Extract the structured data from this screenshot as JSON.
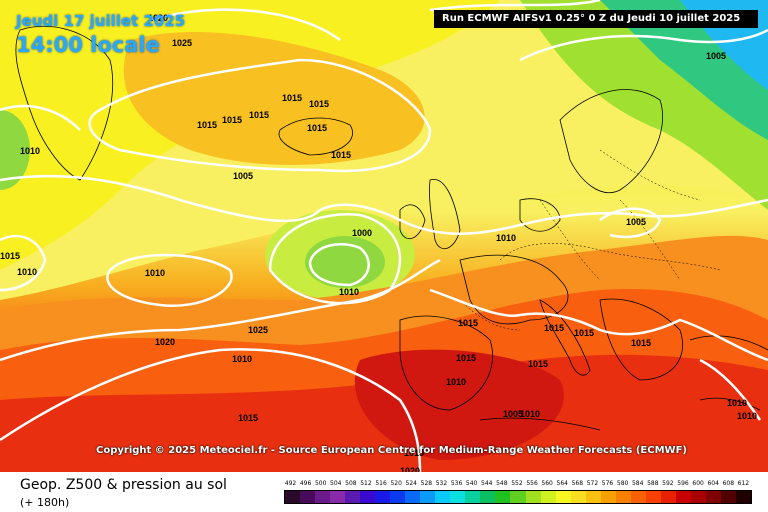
{
  "header": {
    "date": "Jeudi 17 juillet 2025",
    "time": "14:00 locale",
    "run": "Run ECMWF AIFSv1 0.25° 0 Z du Jeudi 10 juillet 2025"
  },
  "copyright": "Copyright © 2025 Meteociel.fr - Source European Centre for Medium-Range Weather Forecasts (ECMWF)",
  "footer": {
    "title": "Geop. Z500 & pression au sol",
    "subtitle": "(+ 180h)"
  },
  "scale": {
    "labels": [
      "492",
      "496",
      "500",
      "504",
      "508",
      "512",
      "516",
      "520",
      "524",
      "528",
      "532",
      "536",
      "540",
      "544",
      "548",
      "552",
      "556",
      "560",
      "564",
      "568",
      "572",
      "576",
      "580",
      "584",
      "588",
      "592",
      "596",
      "600",
      "604",
      "608",
      "612"
    ],
    "colors": [
      "#2a0a2a",
      "#4a0a5a",
      "#6a1a8a",
      "#8a2aaa",
      "#5a1ab0",
      "#3a0ad0",
      "#1a1ae8",
      "#0a3af0",
      "#0a6af8",
      "#0a9afa",
      "#0acafa",
      "#0ae0e0",
      "#0ad0a0",
      "#0ac060",
      "#20c020",
      "#60d020",
      "#a0e020",
      "#d0f020",
      "#f8f820",
      "#f8e020",
      "#f8c010",
      "#f8a000",
      "#f88000",
      "#f86000",
      "#f84000",
      "#e82000",
      "#c80000",
      "#a80000",
      "#800000",
      "#500000",
      "#200000"
    ]
  },
  "pressure_labels": [
    {
      "text": "1020"
    },
    {
      "text": "1025"
    },
    {
      "text": "1015"
    },
    {
      "text": "1015"
    },
    {
      "text": "1015"
    },
    {
      "text": "1015"
    },
    {
      "text": "1015"
    },
    {
      "text": "1015"
    },
    {
      "text": "1010"
    },
    {
      "text": "1015"
    },
    {
      "text": "1005"
    },
    {
      "text": "1000"
    },
    {
      "text": "1010"
    },
    {
      "text": "1010"
    },
    {
      "text": "1005"
    },
    {
      "text": "1010"
    },
    {
      "text": "1010"
    },
    {
      "text": "1015"
    },
    {
      "text": "1020"
    },
    {
      "text": "1025"
    },
    {
      "text": "1010"
    },
    {
      "text": "1015"
    },
    {
      "text": "1015"
    },
    {
      "text": "1015"
    },
    {
      "text": "1015"
    },
    {
      "text": "1015"
    },
    {
      "text": "1015"
    },
    {
      "text": "1015"
    },
    {
      "text": "1010"
    },
    {
      "text": "1005"
    },
    {
      "text": "1010"
    },
    {
      "text": "1005"
    },
    {
      "text": "1010"
    },
    {
      "text": "1010"
    },
    {
      "text": "1015"
    },
    {
      "text": "1020"
    }
  ]
}
